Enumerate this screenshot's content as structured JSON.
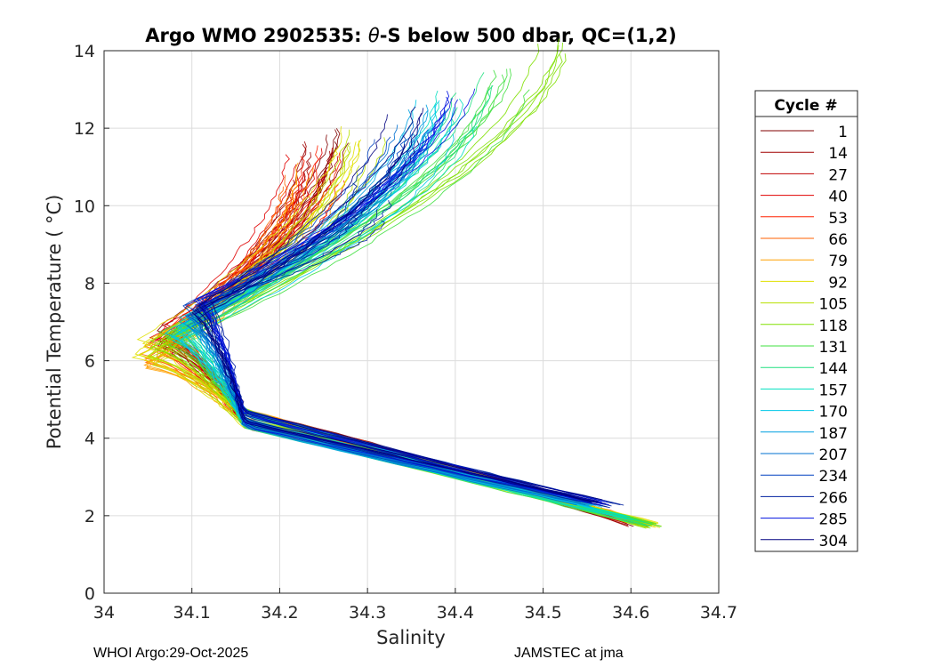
{
  "chart_data": {
    "type": "line",
    "title_prefix": "Argo WMO 2902535: ",
    "title_theta": "θ",
    "title_suffix": "-S below 500 dbar,  QC=(1,2)",
    "xlabel": "Salinity",
    "ylabel": "Potential Temperature ( °C)",
    "xlim": [
      34.0,
      34.7
    ],
    "ylim": [
      0,
      14
    ],
    "xticks": [
      34,
      34.1,
      34.2,
      34.3,
      34.4,
      34.5,
      34.6,
      34.7
    ],
    "xtick_labels": [
      "34",
      "34.1",
      "34.2",
      "34.3",
      "34.4",
      "34.5",
      "34.6",
      "34.7"
    ],
    "yticks": [
      0,
      2,
      4,
      6,
      8,
      10,
      12,
      14
    ],
    "ytick_labels": [
      "0",
      "2",
      "4",
      "6",
      "8",
      "10",
      "12",
      "14"
    ],
    "grid": true,
    "legend_title": "Cycle #",
    "legend_position": "outside-right",
    "series": [
      {
        "name": "1",
        "color": "#800000",
        "s_min": 34.07,
        "t_min": 6.6,
        "upper": [
          34.26,
          11.4
        ],
        "deep": [
          34.61,
          1.75
        ],
        "deep_offset": 0.02
      },
      {
        "name": "14",
        "color": "#a00000",
        "s_min": 34.06,
        "t_min": 6.5,
        "upper": [
          34.25,
          11.3
        ],
        "deep": [
          34.6,
          1.78
        ],
        "deep_offset": 0.02
      },
      {
        "name": "27",
        "color": "#c00000",
        "s_min": 34.07,
        "t_min": 6.7,
        "upper": [
          34.24,
          11.2
        ],
        "deep": [
          34.61,
          1.8
        ],
        "deep_offset": 0.018
      },
      {
        "name": "40",
        "color": "#e00000",
        "s_min": 34.06,
        "t_min": 6.4,
        "upper": [
          34.23,
          10.9
        ],
        "deep": [
          34.6,
          1.82
        ],
        "deep_offset": 0.016
      },
      {
        "name": "53",
        "color": "#ff2000",
        "s_min": 34.07,
        "t_min": 6.6,
        "upper": [
          34.25,
          11.0
        ],
        "deep": [
          34.6,
          1.85
        ],
        "deep_offset": 0.014
      },
      {
        "name": "66",
        "color": "#ff6000",
        "s_min": 34.05,
        "t_min": 6.2,
        "upper": [
          34.22,
          10.4
        ],
        "deep": [
          34.61,
          1.78
        ],
        "deep_offset": 0.012
      },
      {
        "name": "79",
        "color": "#ffa000",
        "s_min": 34.05,
        "t_min": 6.0,
        "upper": [
          34.24,
          10.6
        ],
        "deep": [
          34.61,
          1.8
        ],
        "deep_offset": 0.01
      },
      {
        "name": "92",
        "color": "#e0e000",
        "s_min": 34.04,
        "t_min": 6.3,
        "upper": [
          34.28,
          11.5
        ],
        "deep": [
          34.62,
          1.76
        ],
        "deep_offset": 0.008
      },
      {
        "name": "105",
        "color": "#b8e000",
        "s_min": 34.05,
        "t_min": 6.1,
        "upper": [
          34.3,
          11.6
        ],
        "deep": [
          34.62,
          1.78
        ],
        "deep_offset": 0.006
      },
      {
        "name": "118",
        "color": "#80e000",
        "s_min": 34.06,
        "t_min": 6.4,
        "upper": [
          34.51,
          13.8
        ],
        "deep": [
          34.62,
          1.74
        ],
        "deep_offset": 0.004
      },
      {
        "name": "131",
        "color": "#40e040",
        "s_min": 34.07,
        "t_min": 6.6,
        "upper": [
          34.46,
          13.3
        ],
        "deep": [
          34.62,
          1.77
        ],
        "deep_offset": 0.002
      },
      {
        "name": "144",
        "color": "#20e080",
        "s_min": 34.08,
        "t_min": 6.8,
        "upper": [
          34.42,
          12.9
        ],
        "deep": [
          34.61,
          1.8
        ],
        "deep_offset": 0.0
      },
      {
        "name": "157",
        "color": "#00e0c0",
        "s_min": 34.09,
        "t_min": 6.9,
        "upper": [
          34.4,
          12.6
        ],
        "deep": [
          34.59,
          1.95
        ],
        "deep_offset": -0.004
      },
      {
        "name": "170",
        "color": "#00c8e8",
        "s_min": 34.08,
        "t_min": 6.7,
        "upper": [
          34.38,
          12.3
        ],
        "deep": [
          34.56,
          2.2
        ],
        "deep_offset": -0.008
      },
      {
        "name": "187",
        "color": "#00a0e0",
        "s_min": 34.09,
        "t_min": 7.0,
        "upper": [
          34.36,
          12.2
        ],
        "deep": [
          34.55,
          2.3
        ],
        "deep_offset": -0.01
      },
      {
        "name": "207",
        "color": "#0070d0",
        "s_min": 34.1,
        "t_min": 7.1,
        "upper": [
          34.35,
          11.9
        ],
        "deep": [
          34.54,
          2.35
        ],
        "deep_offset": -0.01
      },
      {
        "name": "234",
        "color": "#0040c0",
        "s_min": 34.1,
        "t_min": 7.3,
        "upper": [
          34.33,
          11.6
        ],
        "deep": [
          34.55,
          2.4
        ],
        "deep_offset": -0.006
      },
      {
        "name": "266",
        "color": "#0020a0",
        "s_min": 34.11,
        "t_min": 7.4,
        "upper": [
          34.31,
          10.1
        ],
        "deep": [
          34.58,
          2.25
        ],
        "deep_offset": -0.004
      },
      {
        "name": "285",
        "color": "#0010e0",
        "s_min": 34.11,
        "t_min": 7.5,
        "upper": [
          34.4,
          12.8
        ],
        "deep": [
          34.57,
          2.3
        ],
        "deep_offset": -0.002
      },
      {
        "name": "304",
        "color": "#000080",
        "s_min": 34.1,
        "t_min": 7.2,
        "upper": [
          34.34,
          12.0
        ],
        "deep": [
          34.56,
          2.35
        ],
        "deep_offset": 0.0
      }
    ]
  },
  "footer": {
    "left": "WHOI Argo:29-Oct-2025",
    "right": "JAMSTEC at jma"
  }
}
